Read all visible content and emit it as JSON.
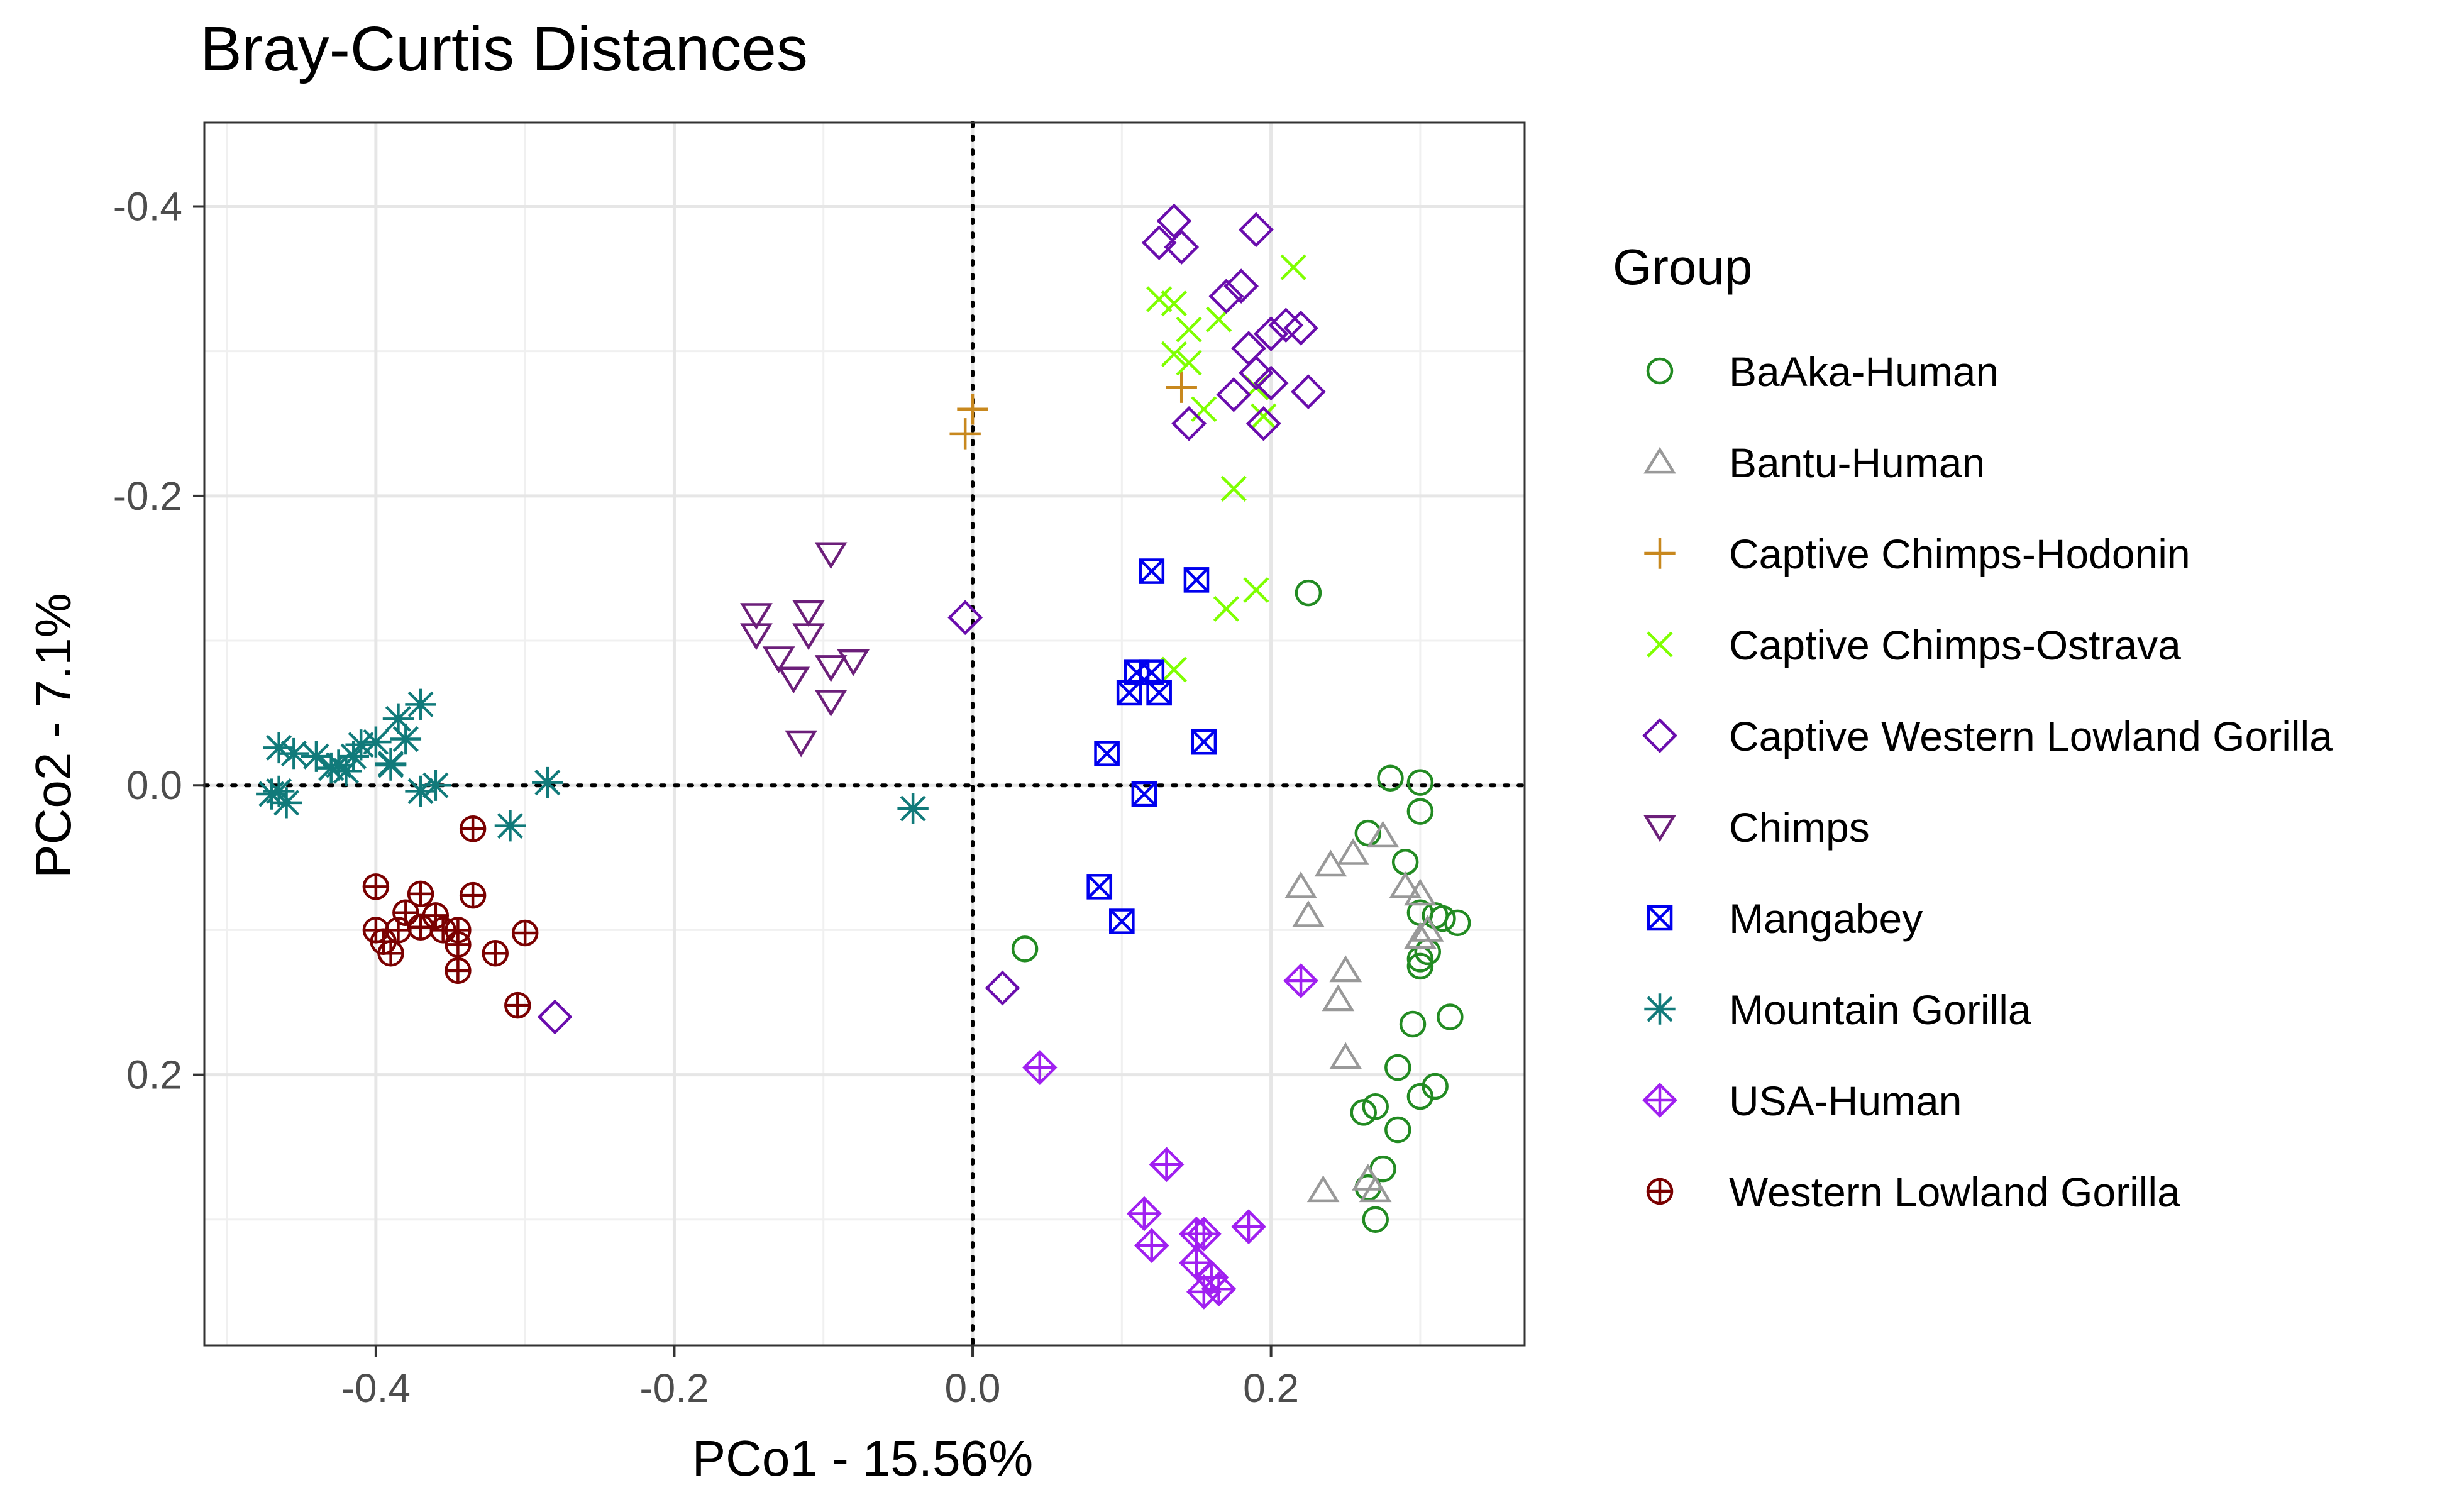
{
  "chart_data": {
    "type": "scatter",
    "title": "Bray-Curtis Distances",
    "xlabel": "PCo1 - 15.56%",
    "ylabel": "PCo2 - 7.1%",
    "xlim": [
      -0.515,
      0.37
    ],
    "ylim": [
      -0.458,
      0.387
    ],
    "y_reversed": true,
    "xticks": [
      -0.4,
      -0.2,
      0.0,
      0.2
    ],
    "xtick_labels": [
      "-0.4",
      "-0.2",
      "0.0",
      "0.2"
    ],
    "yticks": [
      -0.4,
      -0.2,
      0.0,
      0.2
    ],
    "ytick_labels": [
      "-0.4",
      "-0.2",
      "0.0",
      "0.2"
    ],
    "grid": true,
    "reference_lines": {
      "x": 0,
      "y": 0,
      "style": "dotted"
    },
    "legend": {
      "title": "Group",
      "position": "right"
    },
    "series": [
      {
        "name": "BaAka-Human",
        "marker": "circle",
        "color": "#228B22",
        "points": [
          [
            0.225,
            -0.133
          ],
          [
            0.035,
            0.113
          ],
          [
            0.28,
            -0.005
          ],
          [
            0.3,
            -0.002
          ],
          [
            0.3,
            0.018
          ],
          [
            0.265,
            0.033
          ],
          [
            0.29,
            0.053
          ],
          [
            0.3,
            0.088
          ],
          [
            0.31,
            0.09
          ],
          [
            0.315,
            0.092
          ],
          [
            0.325,
            0.095
          ],
          [
            0.305,
            0.115
          ],
          [
            0.3,
            0.12
          ],
          [
            0.3,
            0.125
          ],
          [
            0.32,
            0.16
          ],
          [
            0.295,
            0.165
          ],
          [
            0.285,
            0.195
          ],
          [
            0.31,
            0.208
          ],
          [
            0.3,
            0.215
          ],
          [
            0.27,
            0.222
          ],
          [
            0.262,
            0.226
          ],
          [
            0.285,
            0.238
          ],
          [
            0.275,
            0.265
          ],
          [
            0.265,
            0.278
          ],
          [
            0.27,
            0.3
          ]
        ]
      },
      {
        "name": "Bantu-Human",
        "marker": "triangle",
        "color": "#999999",
        "points": [
          [
            0.24,
            0.055
          ],
          [
            0.255,
            0.047
          ],
          [
            0.275,
            0.035
          ],
          [
            0.29,
            0.07
          ],
          [
            0.3,
            0.075
          ],
          [
            0.305,
            0.1
          ],
          [
            0.3,
            0.105
          ],
          [
            0.22,
            0.07
          ],
          [
            0.225,
            0.09
          ],
          [
            0.25,
            0.128
          ],
          [
            0.245,
            0.148
          ],
          [
            0.25,
            0.188
          ],
          [
            0.235,
            0.28
          ],
          [
            0.265,
            0.272
          ],
          [
            0.27,
            0.28
          ]
        ]
      },
      {
        "name": "Captive Chimps-Hodonin",
        "marker": "plus",
        "color": "#C8881E",
        "points": [
          [
            0.0,
            -0.26
          ],
          [
            -0.005,
            -0.243
          ],
          [
            0.14,
            -0.275
          ]
        ]
      },
      {
        "name": "Captive Chimps-Ostrava",
        "marker": "x",
        "color": "#7FFF00",
        "points": [
          [
            0.215,
            -0.358
          ],
          [
            0.125,
            -0.336
          ],
          [
            0.135,
            -0.333
          ],
          [
            0.145,
            -0.315
          ],
          [
            0.165,
            -0.322
          ],
          [
            0.135,
            -0.298
          ],
          [
            0.145,
            -0.292
          ],
          [
            0.155,
            -0.26
          ],
          [
            0.19,
            -0.275
          ],
          [
            0.195,
            -0.255
          ],
          [
            0.175,
            -0.205
          ],
          [
            0.19,
            -0.135
          ],
          [
            0.17,
            -0.122
          ],
          [
            0.135,
            -0.08
          ]
        ]
      },
      {
        "name": "Captive Western Lowland Gorilla",
        "marker": "diamond",
        "color": "#6A0DAD",
        "points": [
          [
            0.135,
            -0.39
          ],
          [
            0.125,
            -0.375
          ],
          [
            0.14,
            -0.372
          ],
          [
            0.19,
            -0.384
          ],
          [
            0.18,
            -0.345
          ],
          [
            0.17,
            -0.338
          ],
          [
            0.2,
            -0.312
          ],
          [
            0.21,
            -0.318
          ],
          [
            0.22,
            -0.316
          ],
          [
            0.185,
            -0.302
          ],
          [
            0.19,
            -0.285
          ],
          [
            0.2,
            -0.278
          ],
          [
            0.225,
            -0.272
          ],
          [
            0.175,
            -0.27
          ],
          [
            0.145,
            -0.25
          ],
          [
            0.195,
            -0.25
          ],
          [
            -0.005,
            -0.116
          ],
          [
            0.02,
            0.14
          ],
          [
            -0.28,
            0.16
          ]
        ]
      },
      {
        "name": "Chimps",
        "marker": "triangle-down",
        "color": "#6C1F7A",
        "points": [
          [
            -0.095,
            -0.16
          ],
          [
            -0.145,
            -0.118
          ],
          [
            -0.11,
            -0.12
          ],
          [
            -0.145,
            -0.104
          ],
          [
            -0.11,
            -0.104
          ],
          [
            -0.08,
            -0.086
          ],
          [
            -0.13,
            -0.088
          ],
          [
            -0.095,
            -0.082
          ],
          [
            -0.12,
            -0.074
          ],
          [
            -0.095,
            -0.058
          ],
          [
            -0.115,
            -0.03
          ]
        ]
      },
      {
        "name": "Mangabey",
        "marker": "boxx",
        "color": "#0000EE",
        "points": [
          [
            0.12,
            -0.148
          ],
          [
            0.15,
            -0.142
          ],
          [
            0.11,
            -0.078
          ],
          [
            0.12,
            -0.078
          ],
          [
            0.105,
            -0.064
          ],
          [
            0.125,
            -0.064
          ],
          [
            0.155,
            -0.03
          ],
          [
            0.09,
            -0.022
          ],
          [
            0.115,
            0.006
          ],
          [
            0.085,
            0.07
          ],
          [
            0.1,
            0.094
          ]
        ]
      },
      {
        "name": "Mountain Gorilla",
        "marker": "star",
        "color": "#117A7A",
        "points": [
          [
            -0.37,
            -0.056
          ],
          [
            -0.385,
            -0.046
          ],
          [
            -0.4,
            -0.03
          ],
          [
            -0.38,
            -0.032
          ],
          [
            -0.39,
            -0.015
          ],
          [
            -0.41,
            -0.028
          ],
          [
            -0.415,
            -0.02
          ],
          [
            -0.425,
            -0.014
          ],
          [
            -0.44,
            -0.02
          ],
          [
            -0.455,
            -0.022
          ],
          [
            -0.465,
            -0.026
          ],
          [
            -0.42,
            -0.01
          ],
          [
            -0.43,
            -0.012
          ],
          [
            -0.39,
            -0.014
          ],
          [
            -0.36,
            0.0
          ],
          [
            -0.37,
            0.004
          ],
          [
            -0.285,
            -0.002
          ],
          [
            -0.465,
            0.004
          ],
          [
            -0.47,
            0.006
          ],
          [
            -0.46,
            0.012
          ],
          [
            -0.31,
            0.028
          ],
          [
            -0.04,
            0.016
          ]
        ]
      },
      {
        "name": "USA-Human",
        "marker": "diamondplus",
        "color": "#A020F0",
        "points": [
          [
            0.22,
            0.135
          ],
          [
            0.045,
            0.195
          ],
          [
            0.13,
            0.262
          ],
          [
            0.115,
            0.296
          ],
          [
            0.185,
            0.305
          ],
          [
            0.15,
            0.31
          ],
          [
            0.155,
            0.31
          ],
          [
            0.12,
            0.318
          ],
          [
            0.15,
            0.33
          ],
          [
            0.16,
            0.34
          ],
          [
            0.165,
            0.348
          ],
          [
            0.155,
            0.35
          ]
        ]
      },
      {
        "name": "Western Lowland Gorilla",
        "marker": "circleplus",
        "color": "#7A0000",
        "points": [
          [
            -0.335,
            0.03
          ],
          [
            -0.4,
            0.07
          ],
          [
            -0.37,
            0.075
          ],
          [
            -0.335,
            0.076
          ],
          [
            -0.38,
            0.088
          ],
          [
            -0.36,
            0.09
          ],
          [
            -0.4,
            0.1
          ],
          [
            -0.385,
            0.1
          ],
          [
            -0.37,
            0.098
          ],
          [
            -0.355,
            0.1
          ],
          [
            -0.3,
            0.102
          ],
          [
            -0.345,
            0.1
          ],
          [
            -0.395,
            0.108
          ],
          [
            -0.345,
            0.11
          ],
          [
            -0.39,
            0.116
          ],
          [
            -0.32,
            0.116
          ],
          [
            -0.345,
            0.128
          ],
          [
            -0.305,
            0.152
          ]
        ]
      }
    ]
  }
}
